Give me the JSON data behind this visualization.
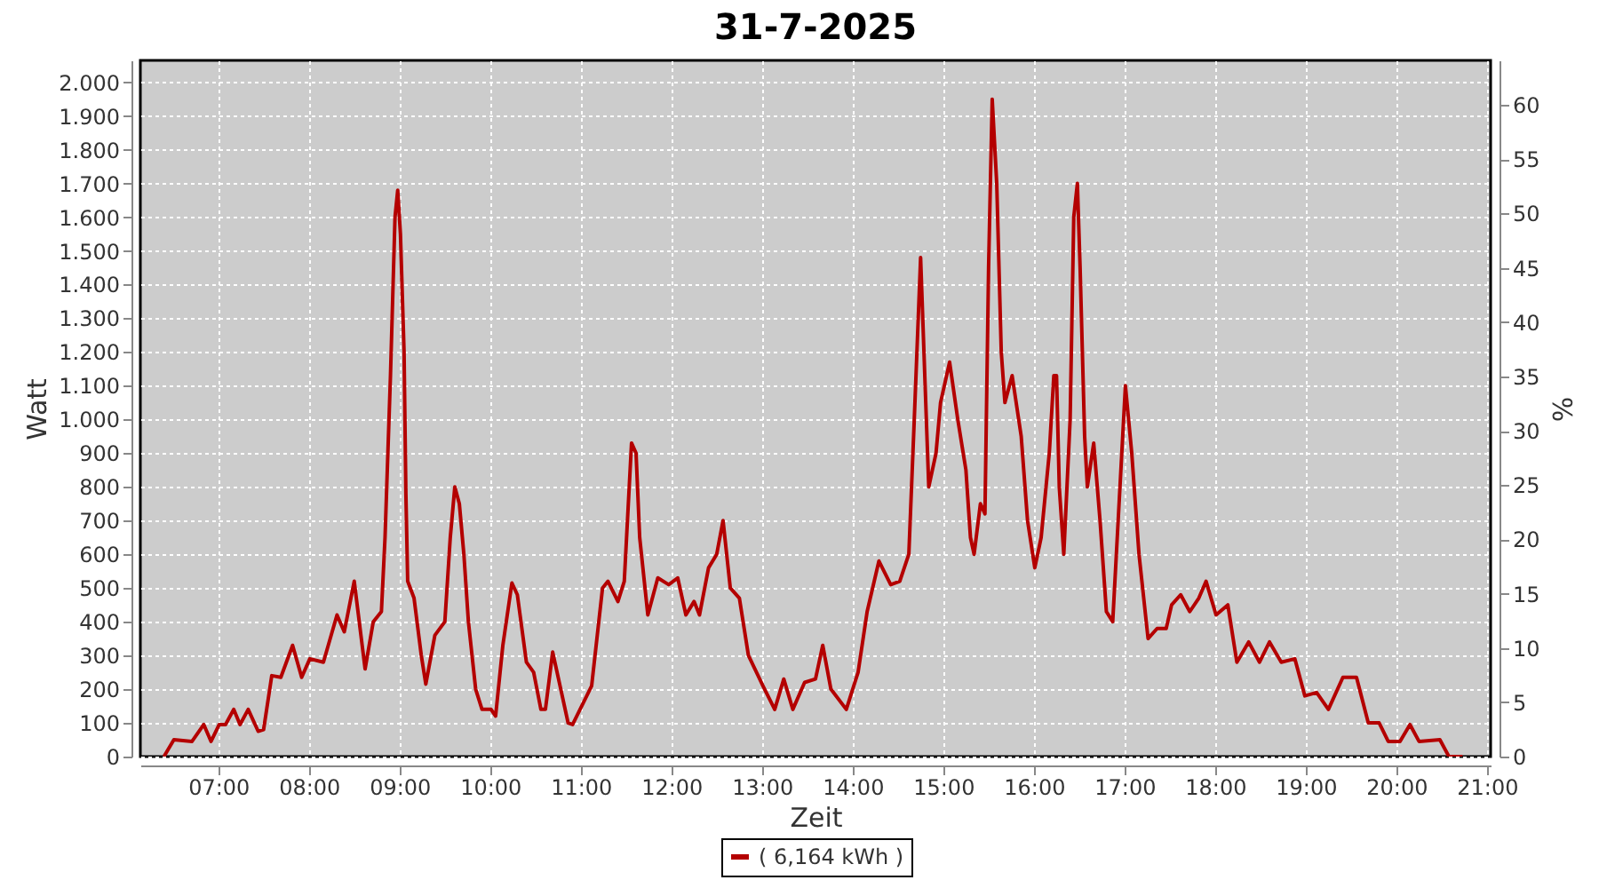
{
  "chart_data": {
    "type": "line",
    "title": "31-7-2025",
    "xlabel": "Zeit",
    "ylabel": "Watt",
    "y2label": "%",
    "x": [
      6.4,
      6.51,
      6.71,
      6.84,
      6.92,
      7.01,
      7.08,
      7.17,
      7.24,
      7.33,
      7.44,
      7.5,
      7.59,
      7.69,
      7.82,
      7.92,
      8.01,
      8.16,
      8.31,
      8.39,
      8.5,
      8.62,
      8.71,
      8.8,
      8.84,
      8.9,
      8.95,
      8.98,
      9.01,
      9.05,
      9.07,
      9.09,
      9.16,
      9.24,
      9.29,
      9.39,
      9.5,
      9.56,
      9.61,
      9.66,
      9.71,
      9.76,
      9.84,
      9.91,
      10.01,
      10.06,
      10.14,
      10.24,
      10.3,
      10.4,
      10.48,
      10.56,
      10.61,
      10.69,
      10.86,
      10.91,
      11.12,
      11.24,
      11.3,
      11.41,
      11.48,
      11.56,
      11.61,
      11.65,
      11.74,
      11.85,
      11.97,
      12.07,
      12.16,
      12.25,
      12.31,
      12.41,
      12.5,
      12.57,
      12.65,
      12.75,
      12.85,
      13.01,
      13.14,
      13.24,
      13.34,
      13.47,
      13.59,
      13.67,
      13.76,
      13.93,
      14.06,
      14.16,
      14.29,
      14.42,
      14.52,
      14.62,
      14.68,
      14.75,
      14.8,
      14.84,
      14.92,
      14.97,
      15.07,
      15.16,
      15.25,
      15.3,
      15.34,
      15.41,
      15.46,
      15.5,
      15.54,
      15.59,
      15.64,
      15.68,
      15.76,
      15.86,
      15.93,
      16.01,
      16.08,
      16.17,
      16.22,
      16.25,
      16.28,
      16.33,
      16.4,
      16.44,
      16.48,
      16.51,
      16.56,
      16.59,
      16.66,
      16.73,
      16.8,
      16.87,
      16.93,
      17.01,
      17.08,
      17.16,
      17.26,
      17.36,
      17.46,
      17.52,
      17.62,
      17.72,
      17.82,
      17.9,
      18.01,
      18.14,
      18.24,
      18.37,
      18.49,
      18.6,
      18.73,
      18.88,
      18.99,
      19.12,
      19.25,
      19.41,
      19.56,
      19.69,
      19.81,
      19.91,
      20.04,
      20.15,
      20.25,
      20.48,
      20.58,
      20.73
    ],
    "series": [
      {
        "name": "( 6,164 kWh )",
        "color": "#b40000",
        "values": [
          0,
          50,
          45,
          95,
          45,
          95,
          95,
          140,
          95,
          140,
          75,
          80,
          240,
          235,
          330,
          235,
          290,
          280,
          420,
          370,
          520,
          260,
          400,
          430,
          650,
          1130,
          1600,
          1680,
          1550,
          1200,
          780,
          520,
          470,
          300,
          215,
          360,
          400,
          650,
          800,
          750,
          600,
          400,
          200,
          140,
          140,
          120,
          330,
          515,
          480,
          280,
          250,
          140,
          140,
          310,
          100,
          95,
          210,
          500,
          520,
          460,
          520,
          930,
          900,
          650,
          420,
          530,
          510,
          530,
          420,
          460,
          420,
          560,
          600,
          700,
          500,
          470,
          300,
          210,
          140,
          230,
          140,
          220,
          230,
          330,
          200,
          140,
          250,
          430,
          580,
          510,
          520,
          600,
          1000,
          1480,
          1100,
          800,
          900,
          1050,
          1170,
          1000,
          850,
          650,
          600,
          750,
          720,
          1450,
          1950,
          1700,
          1200,
          1050,
          1130,
          950,
          700,
          560,
          650,
          900,
          1130,
          1130,
          800,
          600,
          1000,
          1600,
          1700,
          1450,
          950,
          800,
          930,
          700,
          430,
          400,
          700,
          1100,
          900,
          600,
          350,
          380,
          380,
          450,
          480,
          430,
          470,
          520,
          420,
          450,
          280,
          340,
          280,
          340,
          280,
          290,
          180,
          190,
          140,
          235,
          235,
          100,
          100,
          45,
          45,
          95,
          45,
          50,
          0,
          0
        ]
      }
    ],
    "xlim": [
      6.14,
      21.04
    ],
    "xticks": [
      {
        "value": 7,
        "label": "07:00"
      },
      {
        "value": 8,
        "label": "08:00"
      },
      {
        "value": 9,
        "label": "09:00"
      },
      {
        "value": 10,
        "label": "10:00"
      },
      {
        "value": 11,
        "label": "11:00"
      },
      {
        "value": 12,
        "label": "12:00"
      },
      {
        "value": 13,
        "label": "13:00"
      },
      {
        "value": 14,
        "label": "14:00"
      },
      {
        "value": 15,
        "label": "15:00"
      },
      {
        "value": 16,
        "label": "16:00"
      },
      {
        "value": 17,
        "label": "17:00"
      },
      {
        "value": 18,
        "label": "18:00"
      },
      {
        "value": 19,
        "label": "19:00"
      },
      {
        "value": 20,
        "label": "20:00"
      },
      {
        "value": 21,
        "label": "21:00"
      }
    ],
    "ylim": [
      0,
      2065
    ],
    "yticks": [
      0,
      100,
      200,
      300,
      400,
      500,
      600,
      700,
      800,
      900,
      {
        "value": 1000,
        "label": "1.000"
      },
      {
        "value": 1100,
        "label": "1.100"
      },
      {
        "value": 1200,
        "label": "1.200"
      },
      {
        "value": 1300,
        "label": "1.300"
      },
      {
        "value": 1400,
        "label": "1.400"
      },
      {
        "value": 1500,
        "label": "1.500"
      },
      {
        "value": 1600,
        "label": "1.600"
      },
      {
        "value": 1700,
        "label": "1.700"
      },
      {
        "value": 1800,
        "label": "1.800"
      },
      {
        "value": 1900,
        "label": "1.900"
      },
      {
        "value": 2000,
        "label": "2.000"
      }
    ],
    "y2lim": [
      0,
      64.1
    ],
    "y2ticks": [
      0,
      5,
      10,
      15,
      20,
      25,
      30,
      35,
      40,
      45,
      50,
      55,
      60
    ],
    "grid": true,
    "legend": "bottom"
  }
}
